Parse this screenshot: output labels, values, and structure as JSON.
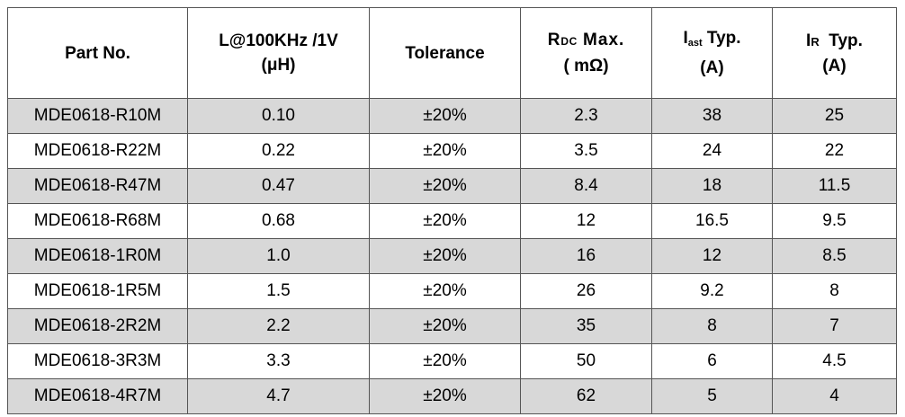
{
  "table": {
    "headers": {
      "part_no": "Part No.",
      "inductance_line1": "L@100KHz /1V",
      "inductance_line2": "(μH)",
      "tolerance": "Tolerance",
      "rdc_main": "R",
      "rdc_sub": "DC",
      "rdc_tail": "Max.",
      "rdc_unit": "( mΩ)",
      "isat_main": "I",
      "isat_sub": "ast",
      "isat_tail": "Typ.",
      "isat_unit": "(A)",
      "ir_main": "I",
      "ir_sub": "R",
      "ir_tail": "Typ.",
      "ir_unit": "(A)"
    },
    "rows": [
      {
        "part_no": "MDE0618-R10M",
        "inductance": "0.10",
        "tolerance": "±20%",
        "rdc": "2.3",
        "isat": "38",
        "ir": "25"
      },
      {
        "part_no": "MDE0618-R22M",
        "inductance": "0.22",
        "tolerance": "±20%",
        "rdc": "3.5",
        "isat": "24",
        "ir": "22"
      },
      {
        "part_no": "MDE0618-R47M",
        "inductance": "0.47",
        "tolerance": "±20%",
        "rdc": "8.4",
        "isat": "18",
        "ir": "11.5"
      },
      {
        "part_no": "MDE0618-R68M",
        "inductance": "0.68",
        "tolerance": "±20%",
        "rdc": "12",
        "isat": "16.5",
        "ir": "9.5"
      },
      {
        "part_no": "MDE0618-1R0M",
        "inductance": "1.0",
        "tolerance": "±20%",
        "rdc": "16",
        "isat": "12",
        "ir": "8.5"
      },
      {
        "part_no": "MDE0618-1R5M",
        "inductance": "1.5",
        "tolerance": "±20%",
        "rdc": "26",
        "isat": "9.2",
        "ir": "8"
      },
      {
        "part_no": "MDE0618-2R2M",
        "inductance": "2.2",
        "tolerance": "±20%",
        "rdc": "35",
        "isat": "8",
        "ir": "7"
      },
      {
        "part_no": "MDE0618-3R3M",
        "inductance": "3.3",
        "tolerance": "±20%",
        "rdc": "50",
        "isat": "6",
        "ir": "4.5"
      },
      {
        "part_no": "MDE0618-4R7M",
        "inductance": "4.7",
        "tolerance": "±20%",
        "rdc": "62",
        "isat": "5",
        "ir": "4"
      }
    ],
    "shade_color": "#d8d8d8",
    "border_color": "#555555"
  }
}
